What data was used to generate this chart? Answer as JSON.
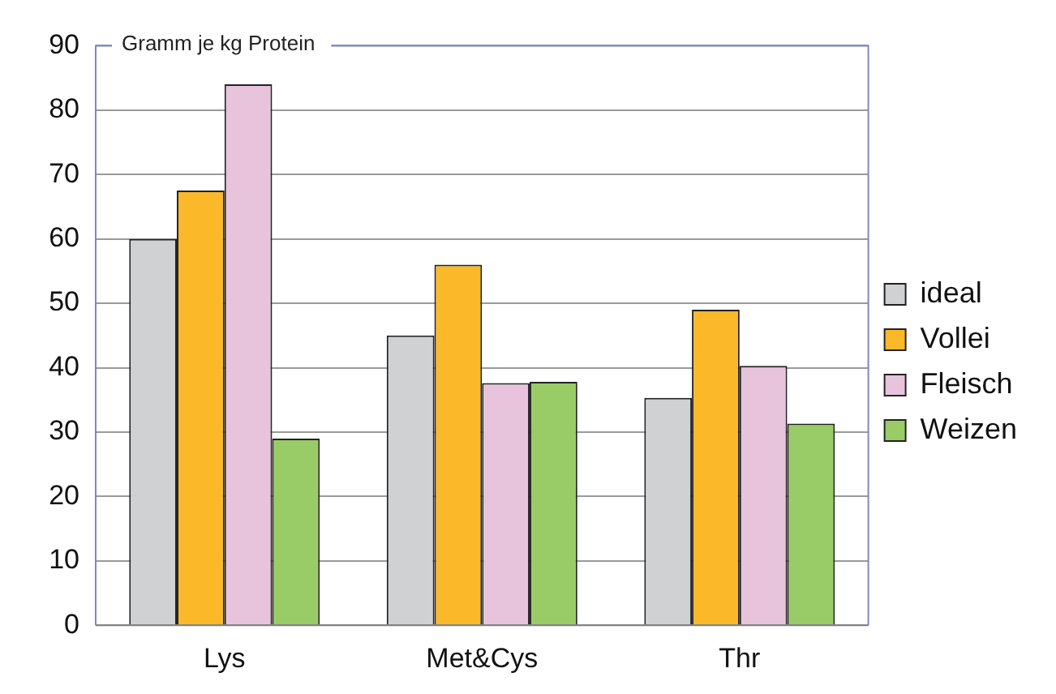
{
  "chart_data": {
    "type": "bar",
    "ylabel": "Gramm je kg Protein",
    "categories": [
      "Lys",
      "Met&Cys",
      "Thr"
    ],
    "series": [
      {
        "name": "ideal",
        "color": "#d0d1d3",
        "values": [
          60,
          45,
          35.3
        ]
      },
      {
        "name": "Vollei",
        "color": "#fbb829",
        "values": [
          67.5,
          56,
          49
        ]
      },
      {
        "name": "Fleisch",
        "color": "#e8c4dc",
        "values": [
          84,
          37.6,
          40.3
        ]
      },
      {
        "name": "Weizen",
        "color": "#99cc66",
        "values": [
          29,
          37.8,
          31.3
        ]
      }
    ],
    "ylim": [
      0,
      90
    ],
    "yticks": [
      0,
      10,
      20,
      30,
      40,
      50,
      60,
      70,
      80,
      90
    ],
    "grid": "y",
    "legend": "right"
  }
}
